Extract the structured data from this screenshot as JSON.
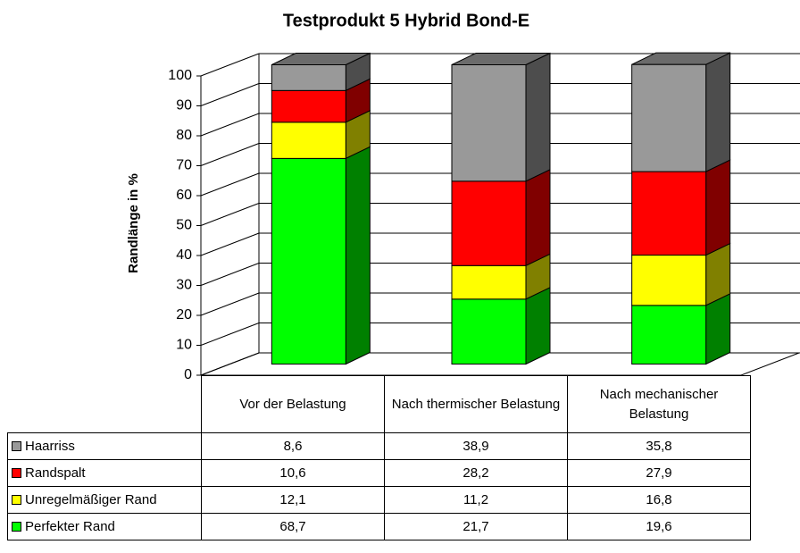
{
  "chart_data": {
    "type": "bar3d_stacked",
    "title": "Testprodukt 5 Hybrid Bond-E",
    "y_label": "Randlänge in %",
    "categories": [
      "Vor der Belastung",
      "Nach thermischer Belastung",
      "Nach mechanischer Belastung"
    ],
    "series": [
      {
        "name": "Haarriss",
        "color": "#999999",
        "values": [
          8.6,
          38.9,
          35.8
        ],
        "value_labels": [
          "8,6",
          "38,9",
          "35,8"
        ]
      },
      {
        "name": "Randspalt",
        "color": "#ff0000",
        "values": [
          10.6,
          28.2,
          27.9
        ],
        "value_labels": [
          "10,6",
          "28,2",
          "27,9"
        ]
      },
      {
        "name": "Unregelmäßiger Rand",
        "color": "#ffff00",
        "values": [
          12.1,
          11.2,
          16.8
        ],
        "value_labels": [
          "12,1",
          "11,2",
          "16,8"
        ]
      },
      {
        "name": "Perfekter Rand",
        "color": "#00ff00",
        "values": [
          68.7,
          21.7,
          19.6
        ],
        "value_labels": [
          "68,7",
          "21,7",
          "19,6"
        ]
      }
    ],
    "ylim": [
      0,
      100
    ],
    "yticks": [
      0,
      10,
      20,
      30,
      40,
      50,
      60,
      70,
      80,
      90,
      100
    ],
    "grid": true
  }
}
